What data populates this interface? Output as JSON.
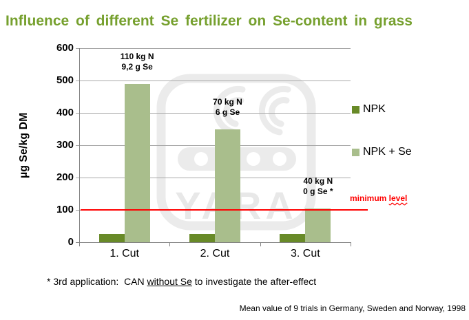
{
  "slide": {
    "title": "Influence of different Se fertilizer on Se-content in grass",
    "footnote": {
      "prefix": "* 3rd application:  CAN ",
      "underlined": "without Se",
      "suffix": " to investigate the after-effect"
    },
    "credit": "Mean value of 9 trials in Germany, Sweden and Norway, 1998",
    "watermark_text": "YARA"
  },
  "colors": {
    "title_green": "#76A02E",
    "npk_green": "#688A28",
    "npk_se_green": "#A9BE8C",
    "reference_red": "#FF0000",
    "gridline_gray": "#A6A6A6",
    "axis_gray": "#808080",
    "watermark_gray": "#EBEBEB"
  },
  "chart_data": {
    "type": "bar",
    "title": "Influence of different Se fertilizer on Se-content in grass",
    "categories": [
      "1. Cut",
      "2. Cut",
      "3. Cut"
    ],
    "series": [
      {
        "name": "NPK",
        "color": "#688A28",
        "values": [
          25,
          25,
          25
        ]
      },
      {
        "name": "NPK + Se",
        "color": "#A9BE8C",
        "values": [
          490,
          350,
          105
        ]
      }
    ],
    "ylabel": "µg Se/kg DM",
    "ylim": [
      0,
      600
    ],
    "ytick_interval": 100,
    "grid": "horizontal",
    "legend_position": "right",
    "annotations": [
      {
        "category": "1. Cut",
        "lines": [
          "110 kg N",
          "9,2 g Se"
        ]
      },
      {
        "category": "2. Cut",
        "lines": [
          "70 kg N",
          "6 g Se"
        ]
      },
      {
        "category": "3. Cut",
        "lines": [
          "40 kg N",
          "0 g Se *"
        ]
      }
    ],
    "reference_line": {
      "value": 100,
      "label": "minimum level",
      "color": "#FF0000"
    }
  }
}
